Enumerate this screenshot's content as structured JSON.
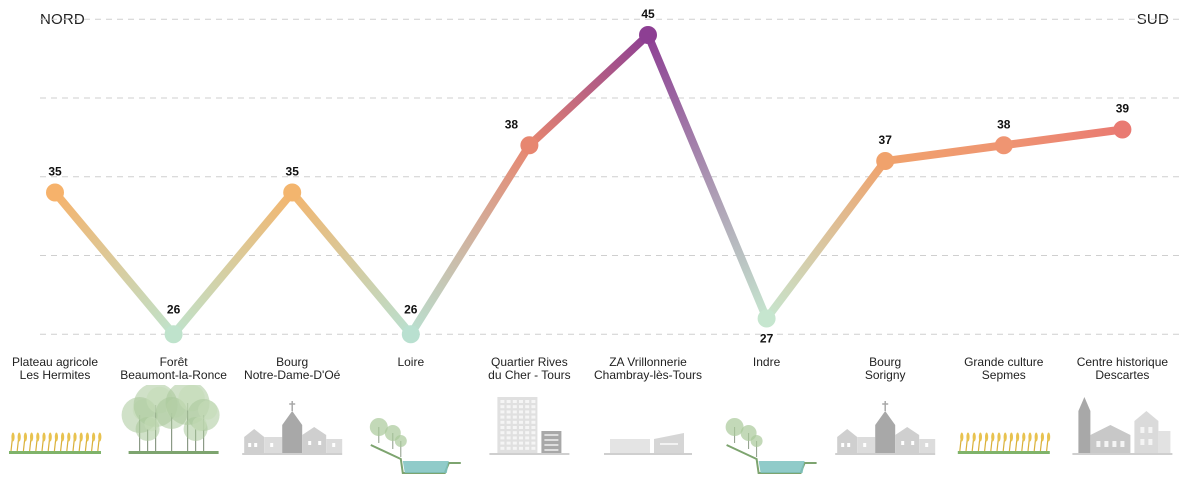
{
  "header": {
    "left": "NORD",
    "right": "SUD"
  },
  "chart_data": {
    "type": "line",
    "categories": [
      [
        "Plateau agricole",
        "Les Hermites"
      ],
      [
        "Forêt",
        "Beaumont-la-Ronce"
      ],
      [
        "Bourg",
        "Notre-Dame-D'Oé"
      ],
      [
        "Loire"
      ],
      [
        "Quartier Rives",
        "du Cher - Tours"
      ],
      [
        "ZA Vrillonnerie",
        "Chambray-lès-Tours"
      ],
      [
        "Indre"
      ],
      [
        "Bourg",
        "Sorigny"
      ],
      [
        "Grande culture",
        "Sepmes"
      ],
      [
        "Centre historique",
        "Descartes"
      ]
    ],
    "values": [
      35,
      26,
      35,
      26,
      38,
      45,
      27,
      37,
      38,
      39
    ],
    "point_colors": [
      "#f6b26b",
      "#bfe3cc",
      "#f3b56e",
      "#b9e0d0",
      "#e78670",
      "#8d3f93",
      "#c6e6cf",
      "#f0a26c",
      "#ef9572",
      "#e97a72"
    ],
    "ylim": [
      25,
      46
    ],
    "grid": true,
    "gridlines": [
      46,
      41,
      36,
      31,
      26
    ],
    "data_labels": true,
    "illustrations": [
      "wheat-field-icon",
      "forest-icon",
      "village-church-icon",
      "river-icon",
      "towers-icon",
      "warehouse-icon",
      "river-icon",
      "village-church-icon",
      "wheat-field-icon",
      "historic-church-icon"
    ]
  }
}
